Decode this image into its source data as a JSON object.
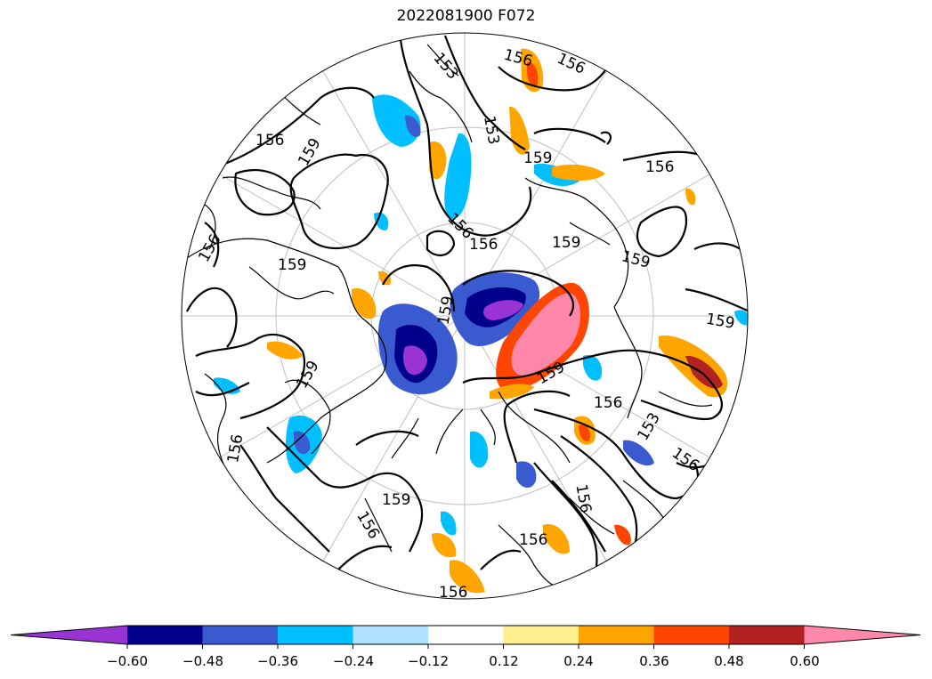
{
  "title": "2022081900 F072",
  "contour_labels": [
    "156",
    "159",
    "153",
    "156",
    "159",
    "156",
    "156",
    "159",
    "159",
    "156",
    "159",
    "159",
    "156",
    "156",
    "153",
    "159",
    "156",
    "159",
    "156",
    "159",
    "156",
    "156",
    "159",
    "153",
    "156",
    "156",
    "156"
  ],
  "colorbar": {
    "colors": [
      "#9a33d4",
      "#00008b",
      "#3a5bd0",
      "#00bfff",
      "#b0e2ff",
      "#ffffff",
      "#ffee90",
      "#ffa500",
      "#ff4500",
      "#b22222",
      "#ff88aa"
    ],
    "ticks": [
      "−0.60",
      "−0.48",
      "−0.36",
      "−0.24",
      "−0.12",
      "0.12",
      "0.24",
      "0.36",
      "0.48",
      "0.60"
    ]
  }
}
